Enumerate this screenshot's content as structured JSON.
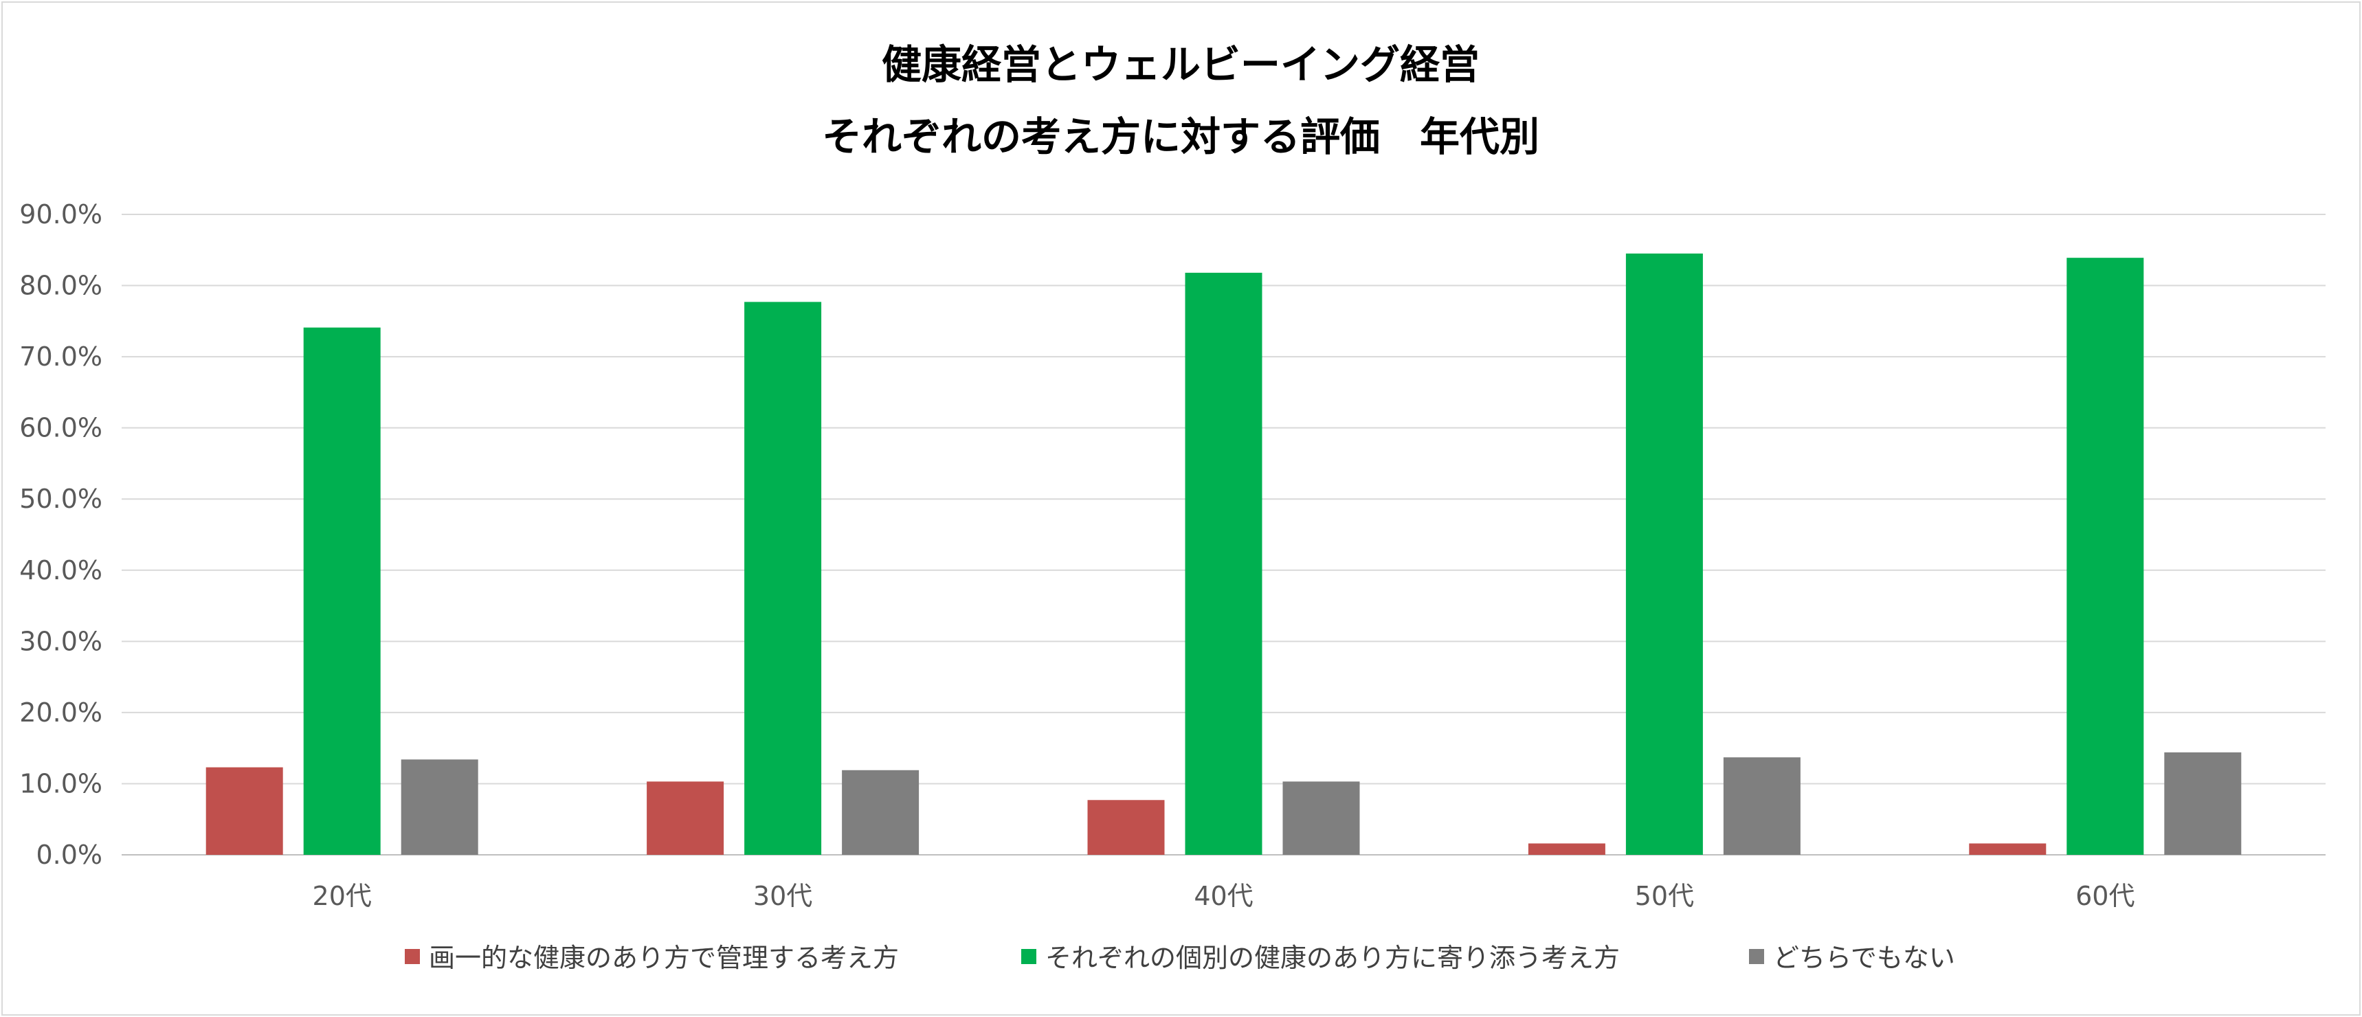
{
  "chart_data": {
    "type": "bar",
    "title": "健康経営とウェルビーイング経営",
    "subtitle": "それぞれの考え方に対する評価　年代別",
    "xlabel": "",
    "ylabel": "",
    "categories": [
      "20代",
      "30代",
      "40代",
      "50代",
      "60代"
    ],
    "series": [
      {
        "name": "画一的な健康のあり方で管理する考え方",
        "color": "#c0504d",
        "values": [
          12.3,
          10.3,
          7.7,
          1.6,
          1.6
        ]
      },
      {
        "name": "それぞれの個別の健康のあり方に寄り添う考え方",
        "color": "#00b050",
        "values": [
          74.1,
          77.7,
          81.8,
          84.5,
          83.9
        ]
      },
      {
        "name": "どちらでもない",
        "color": "#7f7f7f",
        "values": [
          13.4,
          11.9,
          10.3,
          13.7,
          14.4
        ]
      }
    ],
    "y_ticks": [
      "0.0%",
      "10.0%",
      "20.0%",
      "30.0%",
      "40.0%",
      "50.0%",
      "60.0%",
      "70.0%",
      "80.0%",
      "90.0%"
    ],
    "ylim": [
      0,
      90
    ],
    "grid": true,
    "legend_position": "bottom"
  }
}
